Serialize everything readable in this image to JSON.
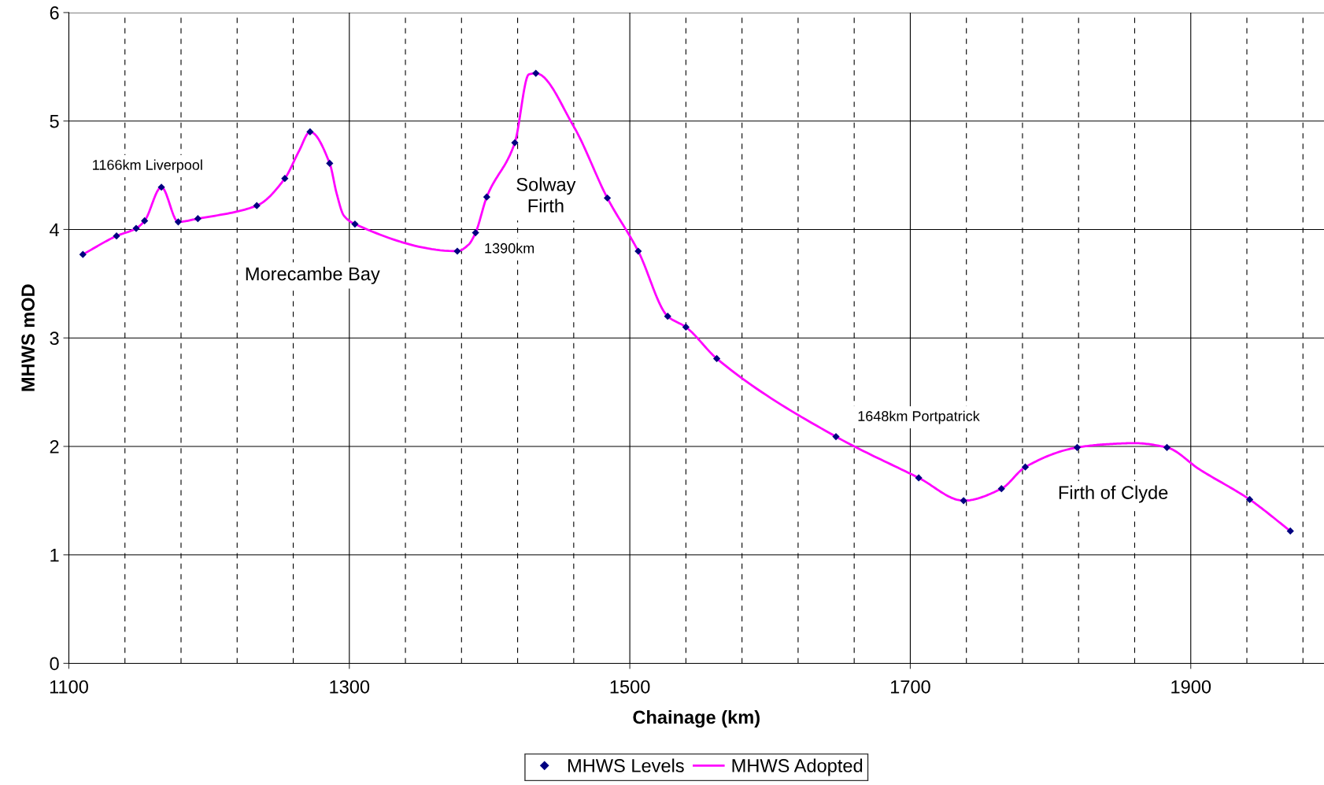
{
  "chart_data": {
    "type": "scatter",
    "xlabel": "Chainage (km)",
    "ylabel": "MHWS mOD",
    "xlim": [
      1100,
      1995
    ],
    "ylim": [
      0,
      6
    ],
    "xticks": [
      1100,
      {
        "value": 1140,
        "label": null
      },
      {
        "value": 1180,
        "label": null
      },
      {
        "value": 1220,
        "label": null
      },
      {
        "value": 1260,
        "label": null
      },
      1300,
      {
        "value": 1340,
        "label": null
      },
      {
        "value": 1380,
        "label": null
      },
      {
        "value": 1420,
        "label": null
      },
      {
        "value": 1460,
        "label": null
      },
      1500,
      {
        "value": 1540,
        "label": null
      },
      {
        "value": 1580,
        "label": null
      },
      {
        "value": 1620,
        "label": null
      },
      {
        "value": 1660,
        "label": null
      },
      1700,
      {
        "value": 1740,
        "label": null
      },
      {
        "value": 1780,
        "label": null
      },
      {
        "value": 1820,
        "label": null
      },
      {
        "value": 1860,
        "label": null
      },
      1900,
      {
        "value": 1940,
        "label": null
      },
      {
        "value": 1980,
        "label": null
      }
    ],
    "yticks": [
      0,
      1,
      2,
      3,
      4,
      5,
      6
    ],
    "grid": true,
    "legend": "bottom",
    "x": [
      1110,
      1134,
      1148,
      1154,
      1166,
      1178,
      1192,
      1234,
      1254,
      1272,
      1286,
      1304,
      1377,
      1390,
      1398,
      1418,
      1433,
      1484,
      1506,
      1527,
      1540,
      1562,
      1647,
      1706,
      1738,
      1765,
      1782,
      1819,
      1883,
      1942,
      1971
    ],
    "series": [
      {
        "name": "MHWS Levels",
        "color": "#000080",
        "marker": "diamond",
        "values": [
          3.77,
          3.94,
          4.01,
          4.08,
          4.39,
          4.07,
          4.1,
          4.22,
          4.47,
          4.9,
          4.61,
          4.05,
          3.8,
          3.97,
          4.3,
          4.8,
          5.44,
          4.29,
          3.8,
          3.2,
          3.1,
          2.81,
          2.09,
          1.71,
          1.5,
          1.61,
          1.81,
          1.99,
          1.99,
          1.51,
          1.22
        ]
      },
      {
        "name": "MHWS Adopted",
        "type": "line",
        "color": "#ff00ff",
        "line_style": "solid",
        "marker": "none",
        "x": [
          1110,
          1134,
          1148,
          1154,
          1166,
          1178,
          1192,
          1234,
          1254,
          1264,
          1272,
          1286,
          1291,
          1296,
          1304,
          1377,
          1385,
          1390,
          1398,
          1418,
          1428,
          1433,
          1460,
          1484,
          1506,
          1527,
          1540,
          1562,
          1647,
          1706,
          1738,
          1765,
          1782,
          1819,
          1840,
          1860,
          1883,
          1906,
          1942,
          1971
        ],
        "values": [
          3.77,
          3.94,
          4.01,
          4.08,
          4.39,
          4.07,
          4.1,
          4.22,
          4.47,
          4.72,
          4.9,
          4.61,
          4.33,
          4.13,
          4.05,
          3.8,
          3.86,
          3.97,
          4.3,
          4.8,
          5.43,
          5.44,
          4.95,
          4.29,
          3.8,
          3.2,
          3.1,
          2.81,
          2.09,
          1.71,
          1.5,
          1.61,
          1.81,
          1.99,
          2.02,
          2.03,
          1.99,
          1.79,
          1.51,
          1.22
        ]
      }
    ],
    "annotations": [
      "1166km Liverpool",
      "Morecambe Bay",
      "Solway\nFirth",
      "1390km",
      "1648km Portpatrick",
      "Firth of Clyde"
    ]
  }
}
